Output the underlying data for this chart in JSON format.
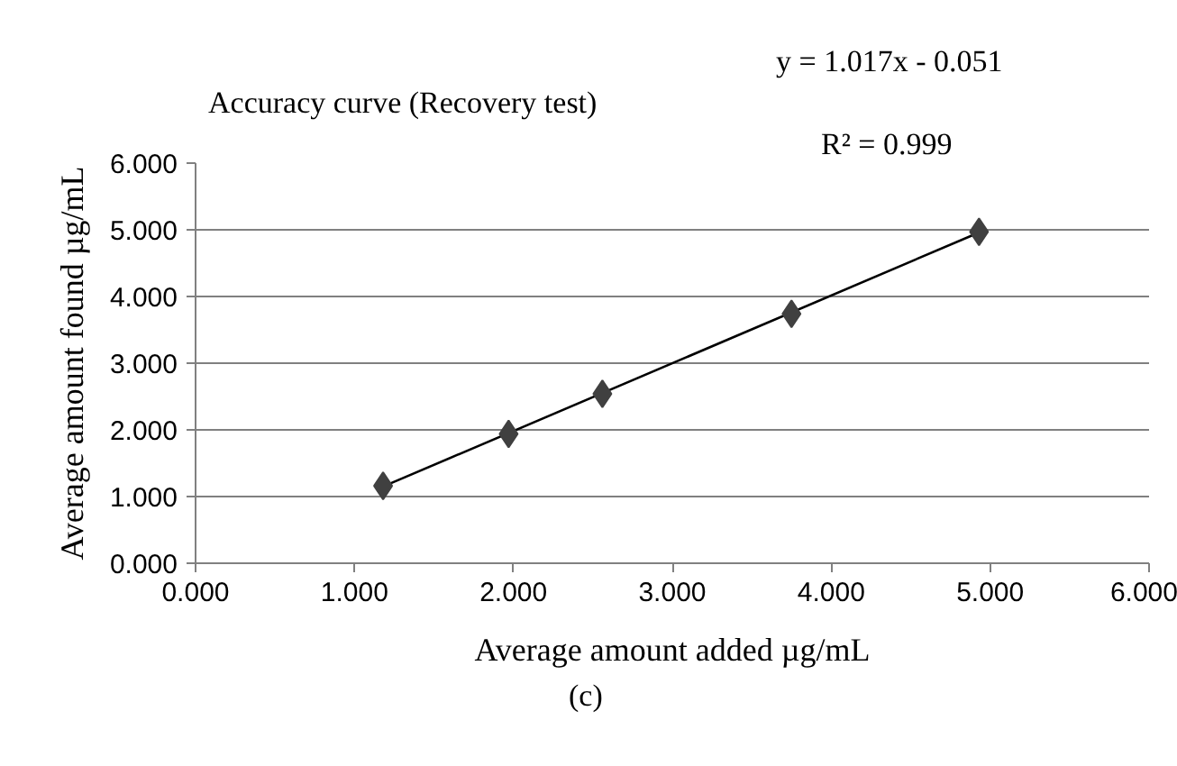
{
  "chart_data": {
    "type": "scatter",
    "title": "Accuracy curve (Recovery test)",
    "xlabel": "Average amount added µg/mL",
    "ylabel": "Average amount found µg/mL",
    "x": [
      1.18,
      1.97,
      2.56,
      3.75,
      4.93
    ],
    "series": [
      {
        "color": "#404040",
        "values": [
          1.16,
          1.94,
          2.54,
          3.74,
          4.97
        ],
        "marker": "diamond"
      },
      {
        "type": "line",
        "color": "#000000",
        "x": [
          1.18,
          4.93
        ],
        "values": [
          1.15,
          4.96
        ],
        "marker": "none"
      }
    ],
    "xlim": [
      0,
      6
    ],
    "ylim": [
      0,
      6
    ],
    "xticks": [
      {
        "value": 0,
        "label": "0.000"
      },
      {
        "value": 1,
        "label": "1.000"
      },
      {
        "value": 2,
        "label": "2.000"
      },
      {
        "value": 3,
        "label": "3.000"
      },
      {
        "value": 4,
        "label": "4.000"
      },
      {
        "value": 5,
        "label": "5.000"
      },
      {
        "value": 6,
        "label": "6.000"
      }
    ],
    "yticks": [
      {
        "value": 0,
        "label": "0.000"
      },
      {
        "value": 1,
        "label": "1.000"
      },
      {
        "value": 2,
        "label": "2.000"
      },
      {
        "value": 3,
        "label": "3.000"
      },
      {
        "value": 4,
        "label": "4.000"
      },
      {
        "value": 5,
        "label": "5.000"
      },
      {
        "value": 6,
        "label": "6.000"
      }
    ],
    "grid": "y",
    "annotations": [
      "y = 1.017x - 0.051",
      "R² = 0.999",
      "(c)"
    ]
  }
}
